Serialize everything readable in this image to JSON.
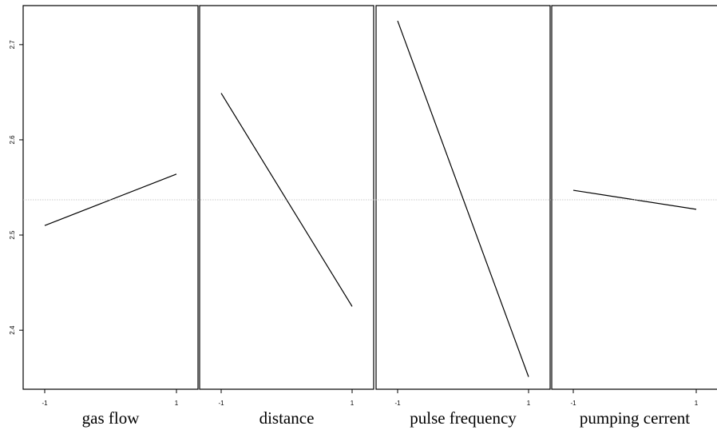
{
  "chart_data": {
    "type": "line",
    "title": "",
    "ylabel": "",
    "ylim": [
      2.338,
      2.741
    ],
    "y_ticks": [
      2.4,
      2.5,
      2.6,
      2.7
    ],
    "y_tick_labels": [
      "2.4",
      "2.5",
      "2.6",
      "2.7"
    ],
    "reference_line": 2.537,
    "grid": false,
    "legend": "none",
    "line_color": "#000000",
    "reference_color": "#bbbbbb",
    "panels": [
      {
        "xlabel": "gas flow",
        "x": [
          -1,
          1
        ],
        "y": [
          2.51,
          2.564
        ],
        "x_tick_labels": [
          "-1",
          "1"
        ]
      },
      {
        "xlabel": "distance",
        "x": [
          -1,
          1
        ],
        "y": [
          2.649,
          2.425
        ],
        "x_tick_labels": [
          "-1",
          "1"
        ]
      },
      {
        "xlabel": "pulse frequency",
        "x": [
          -1,
          1
        ],
        "y": [
          2.725,
          2.351
        ],
        "x_tick_labels": [
          "-1",
          "1"
        ]
      },
      {
        "xlabel": "pumping cerrent",
        "x": [
          -1,
          1
        ],
        "y": [
          2.547,
          2.527
        ],
        "x_tick_labels": [
          "-1",
          "1"
        ]
      }
    ]
  }
}
